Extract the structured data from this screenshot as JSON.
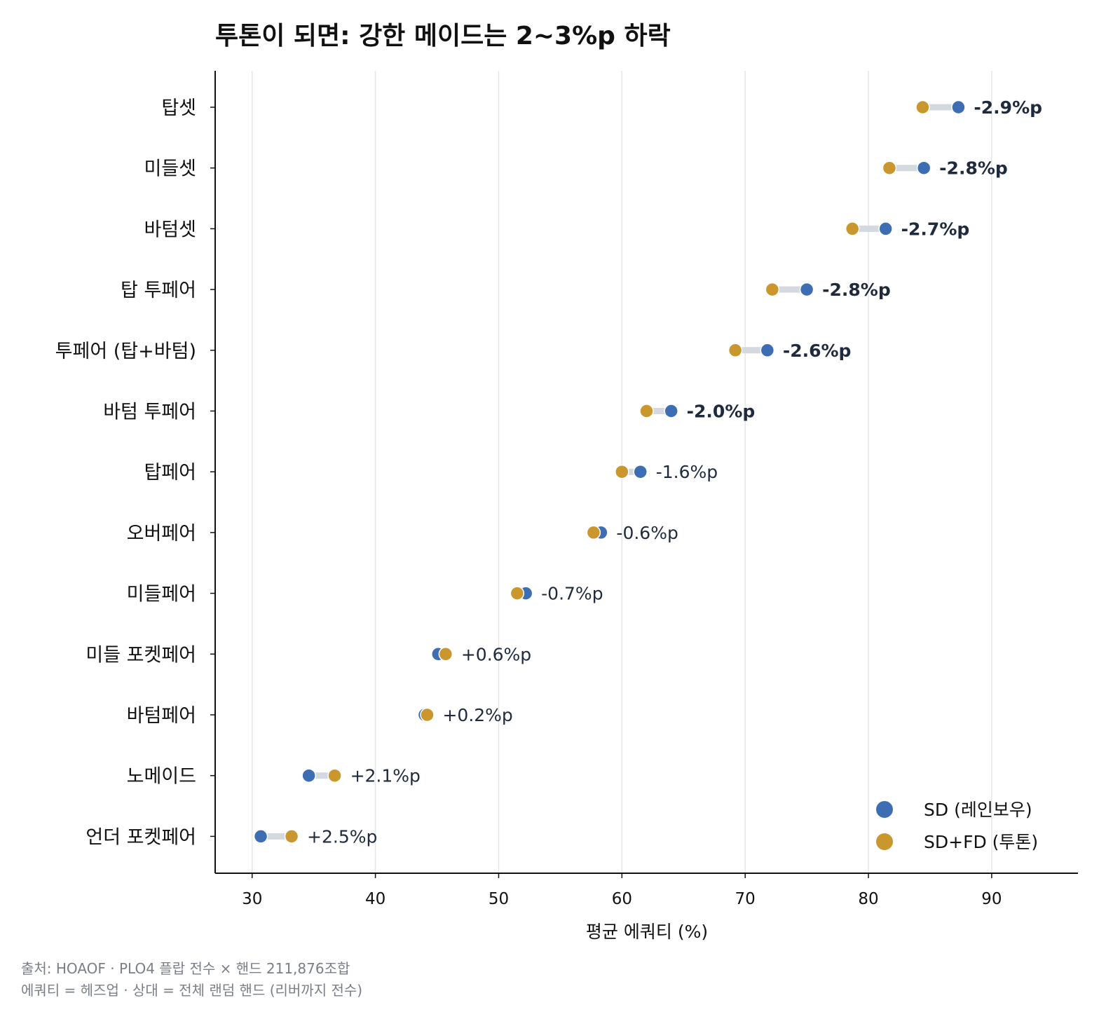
{
  "colors": {
    "sd": "#3d6db3",
    "sdfd": "#c9972e",
    "connector": "#d4d8df",
    "grid": "#e6e6e6",
    "axis": "#111111",
    "delta_text": "#1f2a3d",
    "footnote": "#7a7f87"
  },
  "chart_data": {
    "type": "dumbbell",
    "title": "투톤이 되면: 강한 메이드는 2~3%p 하락",
    "xlabel": "평균 에쿼티 (%)",
    "xlim": [
      27,
      97
    ],
    "xticks": [
      30,
      40,
      50,
      60,
      70,
      80,
      90
    ],
    "grid": "vertical",
    "legend_placement": "bottom-right",
    "categories": [
      "탑셋",
      "미들셋",
      "바텀셋",
      "탑 투페어",
      "투페어 (탑+바텀)",
      "바텀 투페어",
      "탑페어",
      "오버페어",
      "미들페어",
      "미들 포켓페어",
      "바텀페어",
      "노메이드",
      "언더 포켓페어"
    ],
    "series": [
      {
        "name": "SD (레인보우)",
        "values": [
          87.3,
          84.5,
          81.4,
          75.0,
          71.8,
          64.0,
          61.5,
          58.3,
          52.2,
          45.1,
          44.0,
          34.6,
          30.7
        ]
      },
      {
        "name": "SD+FD (투톤)",
        "values": [
          84.4,
          81.7,
          78.7,
          72.2,
          69.2,
          62.0,
          60.0,
          57.7,
          51.5,
          45.7,
          44.2,
          36.7,
          33.2
        ]
      }
    ],
    "delta_labels": [
      "-2.9%p",
      "-2.8%p",
      "-2.7%p",
      "-2.8%p",
      "-2.6%p",
      "-2.0%p",
      "-1.6%p",
      "-0.6%p",
      "-0.7%p",
      "+0.6%p",
      "+0.2%p",
      "+2.1%p",
      "+2.5%p"
    ],
    "delta_bold": [
      true,
      true,
      true,
      true,
      true,
      true,
      false,
      false,
      false,
      false,
      false,
      false,
      false
    ]
  },
  "footnote": {
    "line1": "출처: HOAOF · PLO4 플랍 전수 × 핸드 211,876조합",
    "line2": "에쿼티 = 헤즈업 · 상대 = 전체 랜덤 핸드 (리버까지 전수)"
  }
}
